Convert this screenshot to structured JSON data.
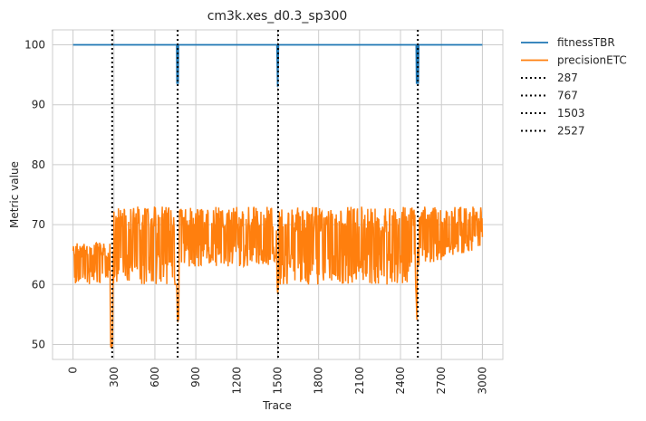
{
  "chart_data": {
    "type": "line",
    "title": "cm3k.xes_d0.3_sp300",
    "xlabel": "Trace",
    "ylabel": "Metric value",
    "xlim": [
      -150,
      3150
    ],
    "ylim": [
      47.5,
      102.5
    ],
    "xticks": [
      0,
      300,
      600,
      900,
      1200,
      1500,
      1800,
      2100,
      2400,
      2700,
      3000
    ],
    "yticks": [
      50,
      60,
      70,
      80,
      90,
      100
    ],
    "grid": true,
    "legend_position": "outside-top-right",
    "series": [
      {
        "name": "fitnessTBR",
        "color": "#1f77b4",
        "points": [
          [
            0,
            100
          ],
          [
            760,
            100
          ],
          [
            762,
            93.5
          ],
          [
            764,
            100
          ],
          [
            766,
            93.5
          ],
          [
            768,
            100
          ],
          [
            770,
            93.5
          ],
          [
            772,
            100
          ],
          [
            1495,
            100
          ],
          [
            1500,
            93
          ],
          [
            1505,
            100
          ],
          [
            2515,
            100
          ],
          [
            2518,
            93.5
          ],
          [
            2521,
            100
          ],
          [
            2524,
            93.5
          ],
          [
            2527,
            100
          ],
          [
            2530,
            93.5
          ],
          [
            2533,
            100
          ],
          [
            3000,
            100
          ]
        ]
      },
      {
        "name": "precisionETC",
        "color": "#ff7f0e",
        "band_edges": [
          [
            0,
            67
          ],
          [
            270,
            67
          ],
          [
            275,
            50
          ],
          [
            290,
            50
          ],
          [
            295,
            73
          ],
          [
            740,
            73
          ],
          [
            745,
            60
          ],
          [
            760,
            60
          ],
          [
            765,
            54.5
          ],
          [
            775,
            54.5
          ],
          [
            780,
            73
          ],
          [
            1490,
            73
          ],
          [
            1495,
            60
          ],
          [
            1500,
            58.5
          ],
          [
            1505,
            60
          ],
          [
            1510,
            73
          ],
          [
            2505,
            73
          ],
          [
            2510,
            60
          ],
          [
            2515,
            58
          ],
          [
            2520,
            54.5
          ],
          [
            2525,
            73
          ],
          [
            3000,
            73
          ]
        ],
        "band_floor": [
          [
            0,
            60
          ],
          [
            290,
            60
          ],
          [
            295,
            60
          ],
          [
            760,
            60
          ],
          [
            780,
            63
          ],
          [
            1490,
            63
          ],
          [
            1510,
            60
          ],
          [
            2505,
            60
          ],
          [
            2525,
            63
          ],
          [
            3000,
            66
          ]
        ],
        "range": [
          50,
          72.8
        ]
      },
      {
        "name": "287",
        "color": "#000000",
        "style": "dotted",
        "x": 287
      },
      {
        "name": "767",
        "color": "#000000",
        "style": "dotted",
        "x": 767
      },
      {
        "name": "1503",
        "color": "#000000",
        "style": "dotted",
        "x": 1503
      },
      {
        "name": "2527",
        "color": "#000000",
        "style": "dotted",
        "x": 2527
      }
    ]
  }
}
